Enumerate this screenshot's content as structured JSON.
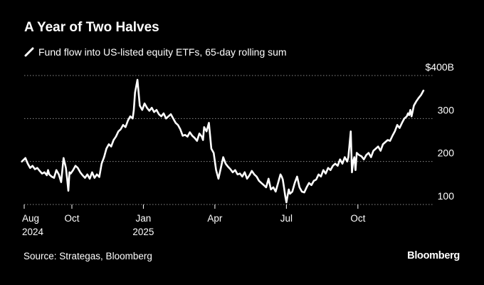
{
  "colors": {
    "background": "#000000",
    "line": "#ffffff",
    "grid": "#8a8a8a",
    "text": "#ffffff"
  },
  "chart_data": {
    "type": "line",
    "title": "A Year of Two Halves",
    "series_label": "Fund flow into US-listed equity ETFs, 65-day rolling sum",
    "unit_prefix": "$",
    "unit_suffix": "B",
    "ylim": [
      100,
      400
    ],
    "yticks": [
      100,
      200,
      300,
      400
    ],
    "grid": true,
    "xlim": [
      0,
      17.2
    ],
    "xticks": [
      {
        "pos": 0,
        "label": "Aug",
        "sub": "2024"
      },
      {
        "pos": 2,
        "label": "Oct",
        "sub": ""
      },
      {
        "pos": 5,
        "label": "Jan",
        "sub": "2025"
      },
      {
        "pos": 8,
        "label": "Apr",
        "sub": ""
      },
      {
        "pos": 11,
        "label": "Jul",
        "sub": ""
      },
      {
        "pos": 14,
        "label": "Oct",
        "sub": ""
      }
    ],
    "series": [
      {
        "name": "Fund flow into US-listed equity ETFs, 65-day rolling sum",
        "x": [
          -0.1,
          0.05,
          0.15,
          0.25,
          0.35,
          0.45,
          0.55,
          0.65,
          0.75,
          0.85,
          0.95,
          1.0,
          1.05,
          1.15,
          1.25,
          1.35,
          1.45,
          1.55,
          1.65,
          1.75,
          1.8,
          1.85,
          1.9,
          1.95,
          2.05,
          2.15,
          2.25,
          2.35,
          2.45,
          2.55,
          2.65,
          2.75,
          2.85,
          2.95,
          3.05,
          3.15,
          3.25,
          3.35,
          3.45,
          3.55,
          3.65,
          3.75,
          3.85,
          3.95,
          4.05,
          4.15,
          4.25,
          4.35,
          4.45,
          4.55,
          4.6,
          4.65,
          4.75,
          4.85,
          4.95,
          5.05,
          5.15,
          5.25,
          5.35,
          5.45,
          5.55,
          5.65,
          5.75,
          5.85,
          5.95,
          6.05,
          6.15,
          6.25,
          6.35,
          6.45,
          6.55,
          6.65,
          6.75,
          6.85,
          6.95,
          7.05,
          7.15,
          7.25,
          7.35,
          7.45,
          7.5,
          7.55,
          7.65,
          7.75,
          7.85,
          7.95,
          8.05,
          8.15,
          8.25,
          8.35,
          8.45,
          8.55,
          8.65,
          8.75,
          8.85,
          8.95,
          9.05,
          9.15,
          9.25,
          9.35,
          9.45,
          9.55,
          9.65,
          9.75,
          9.85,
          9.95,
          10.05,
          10.15,
          10.25,
          10.35,
          10.45,
          10.55,
          10.65,
          10.75,
          10.8,
          10.85,
          10.9,
          10.95,
          11.0,
          11.05,
          11.1,
          11.15,
          11.25,
          11.35,
          11.45,
          11.55,
          11.65,
          11.75,
          11.85,
          11.95,
          12.05,
          12.15,
          12.25,
          12.35,
          12.45,
          12.55,
          12.65,
          12.75,
          12.85,
          12.95,
          13.05,
          13.15,
          13.25,
          13.35,
          13.45,
          13.55,
          13.6,
          13.65,
          13.7,
          13.75,
          13.8,
          13.85,
          13.9,
          13.95,
          14.05,
          14.15,
          14.25,
          14.35,
          14.45,
          14.55,
          14.65,
          14.75,
          14.85,
          14.95,
          15.05,
          15.15,
          15.25,
          15.35,
          15.45,
          15.55,
          15.65,
          15.75,
          15.85,
          15.95,
          16.05,
          16.1,
          16.15,
          16.2,
          16.25,
          16.35,
          16.45,
          16.55,
          16.65,
          16.75
        ],
        "values": [
          200,
          208,
          195,
          185,
          190,
          182,
          185,
          178,
          172,
          175,
          168,
          180,
          170,
          165,
          162,
          180,
          170,
          152,
          208,
          185,
          160,
          132,
          175,
          172,
          180,
          190,
          185,
          175,
          168,
          162,
          170,
          160,
          175,
          162,
          170,
          164,
          195,
          210,
          230,
          240,
          235,
          250,
          258,
          270,
          275,
          285,
          280,
          295,
          305,
          300,
          320,
          360,
          390,
          330,
          320,
          335,
          325,
          318,
          325,
          315,
          320,
          310,
          305,
          312,
          300,
          305,
          310,
          300,
          290,
          285,
          275,
          260,
          262,
          258,
          268,
          260,
          255,
          248,
          265,
          258,
          250,
          280,
          270,
          290,
          230,
          220,
          180,
          160,
          185,
          210,
          195,
          188,
          182,
          175,
          180,
          170,
          172,
          165,
          175,
          160,
          168,
          178,
          170,
          165,
          155,
          150,
          145,
          140,
          160,
          135,
          140,
          130,
          150,
          170,
          165,
          158,
          140,
          120,
          105,
          120,
          135,
          125,
          130,
          150,
          165,
          140,
          130,
          128,
          140,
          150,
          145,
          155,
          158,
          170,
          165,
          180,
          172,
          185,
          180,
          190,
          195,
          190,
          205,
          195,
          210,
          200,
          210,
          240,
          270,
          175,
          200,
          210,
          180,
          220,
          215,
          212,
          205,
          215,
          220,
          210,
          225,
          230,
          235,
          225,
          240,
          245,
          250,
          248,
          260,
          270,
          285,
          278,
          290,
          300,
          305,
          312,
          308,
          320,
          305,
          330,
          340,
          348,
          355,
          365
        ]
      }
    ]
  },
  "source": "Source: Strategas, Bloomberg",
  "logo_text": "Bloomberg"
}
